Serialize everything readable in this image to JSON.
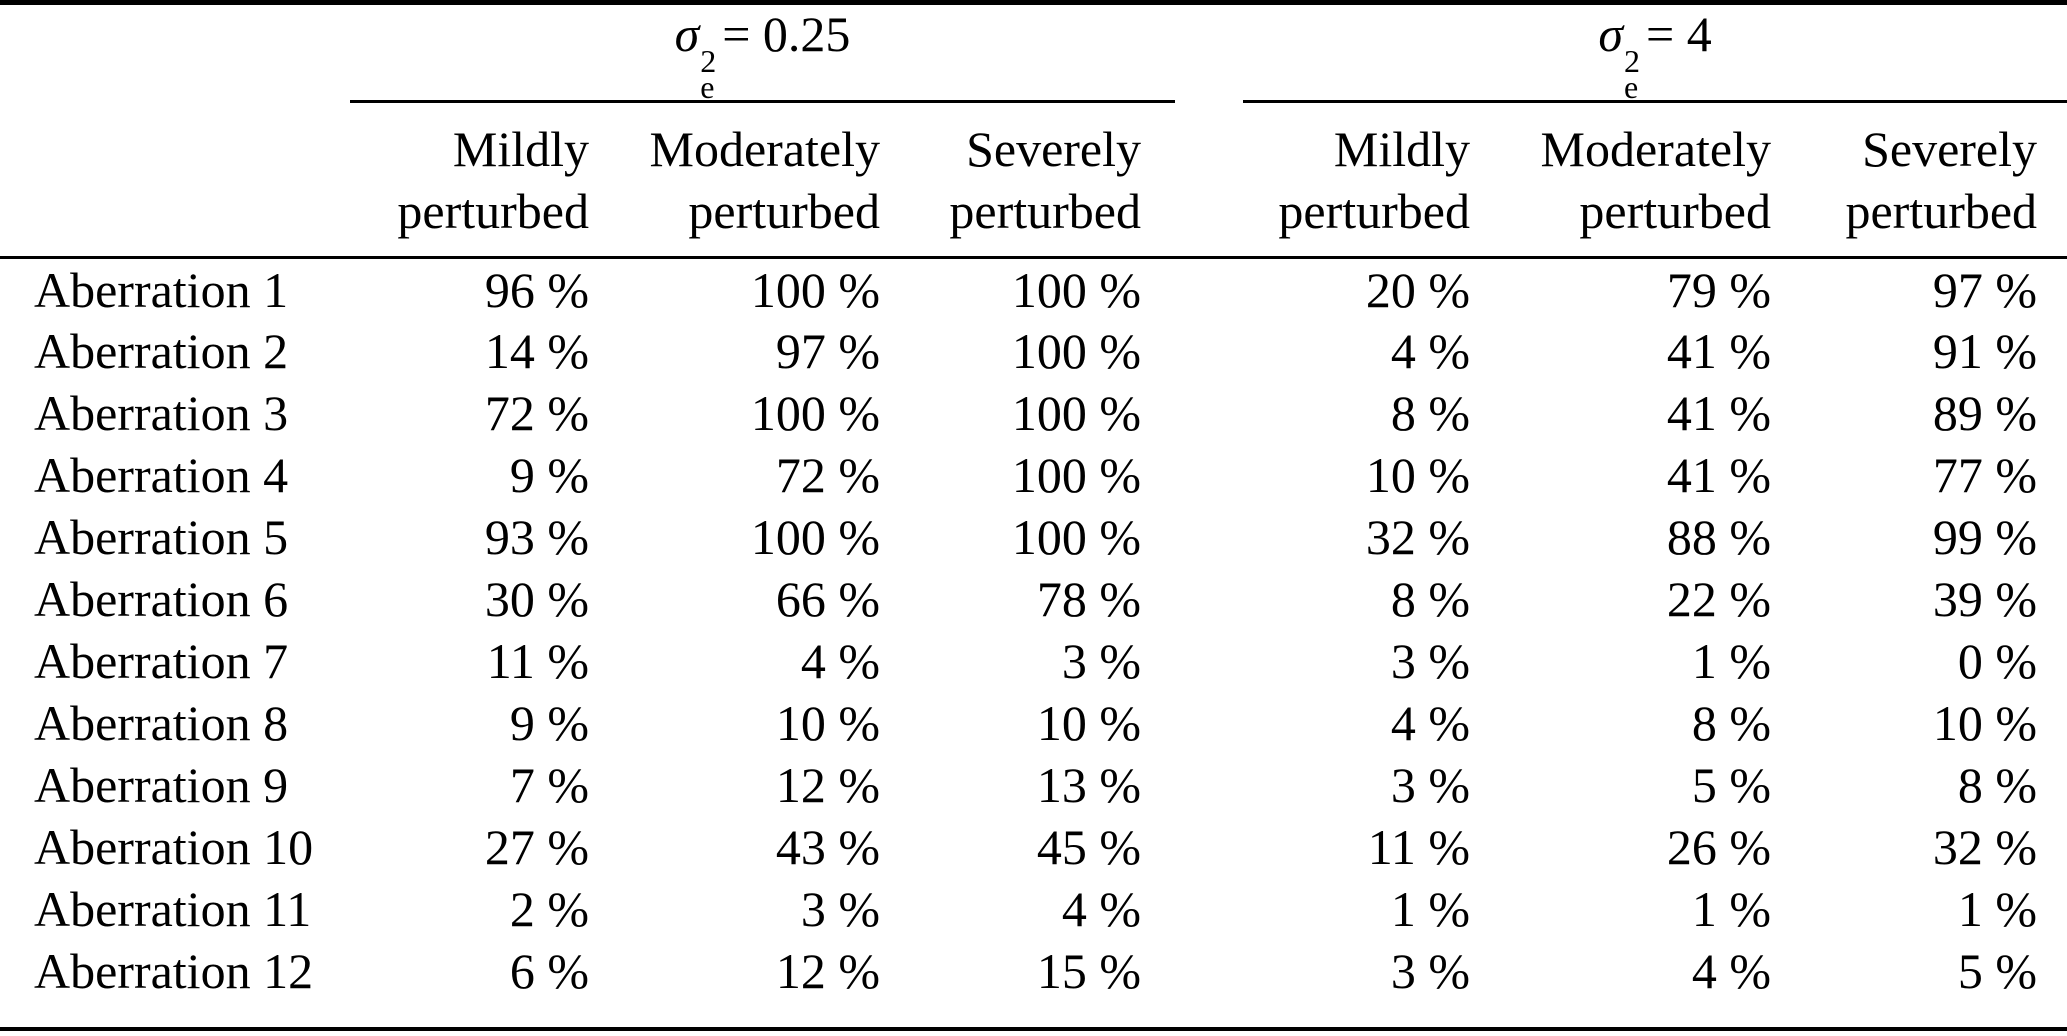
{
  "figure": {
    "background_color": "#ffffff",
    "text_color": "#000000"
  },
  "table": {
    "groups": [
      {
        "sigma": "σ",
        "sup": "2",
        "sub": "e",
        "rhs": "= 0.25"
      },
      {
        "sigma": "σ",
        "sup": "2",
        "sub": "e",
        "rhs": "= 4"
      }
    ],
    "column_headers": [
      {
        "line1": "Mildly",
        "line2": "perturbed"
      },
      {
        "line1": "Moderately",
        "line2": "perturbed"
      },
      {
        "line1": "Severely",
        "line2": "perturbed"
      },
      {
        "line1": "Mildly",
        "line2": "perturbed"
      },
      {
        "line1": "Moderately",
        "line2": "perturbed"
      },
      {
        "line1": "Severely",
        "line2": "perturbed"
      }
    ],
    "rows": [
      {
        "label": "Aberration 1",
        "values": [
          "96 %",
          "100 %",
          "100 %",
          "20 %",
          "79 %",
          "97 %"
        ]
      },
      {
        "label": "Aberration 2",
        "values": [
          "14 %",
          "97 %",
          "100 %",
          "4 %",
          "41 %",
          "91 %"
        ]
      },
      {
        "label": "Aberration 3",
        "values": [
          "72 %",
          "100 %",
          "100 %",
          "8 %",
          "41 %",
          "89 %"
        ]
      },
      {
        "label": "Aberration 4",
        "values": [
          "9 %",
          "72 %",
          "100 %",
          "10 %",
          "41 %",
          "77 %"
        ]
      },
      {
        "label": "Aberration 5",
        "values": [
          "93 %",
          "100 %",
          "100 %",
          "32 %",
          "88 %",
          "99 %"
        ]
      },
      {
        "label": "Aberration 6",
        "values": [
          "30 %",
          "66 %",
          "78 %",
          "8 %",
          "22 %",
          "39 %"
        ]
      },
      {
        "label": "Aberration 7",
        "values": [
          "11 %",
          "4 %",
          "3 %",
          "3 %",
          "1 %",
          "0 %"
        ]
      },
      {
        "label": "Aberration 8",
        "values": [
          "9 %",
          "10 %",
          "10 %",
          "4 %",
          "8 %",
          "10 %"
        ]
      },
      {
        "label": "Aberration 9",
        "values": [
          "7 %",
          "12 %",
          "13 %",
          "3 %",
          "5 %",
          "8 %"
        ]
      },
      {
        "label": "Aberration 10",
        "values": [
          "27 %",
          "43 %",
          "45 %",
          "11 %",
          "26 %",
          "32 %"
        ]
      },
      {
        "label": "Aberration 11",
        "values": [
          "2 %",
          "3 %",
          "4 %",
          "1 %",
          "1 %",
          "1 %"
        ]
      },
      {
        "label": "Aberration 12",
        "values": [
          "6 %",
          "12 %",
          "15 %",
          "3 %",
          "4 %",
          "5 %"
        ]
      }
    ]
  }
}
